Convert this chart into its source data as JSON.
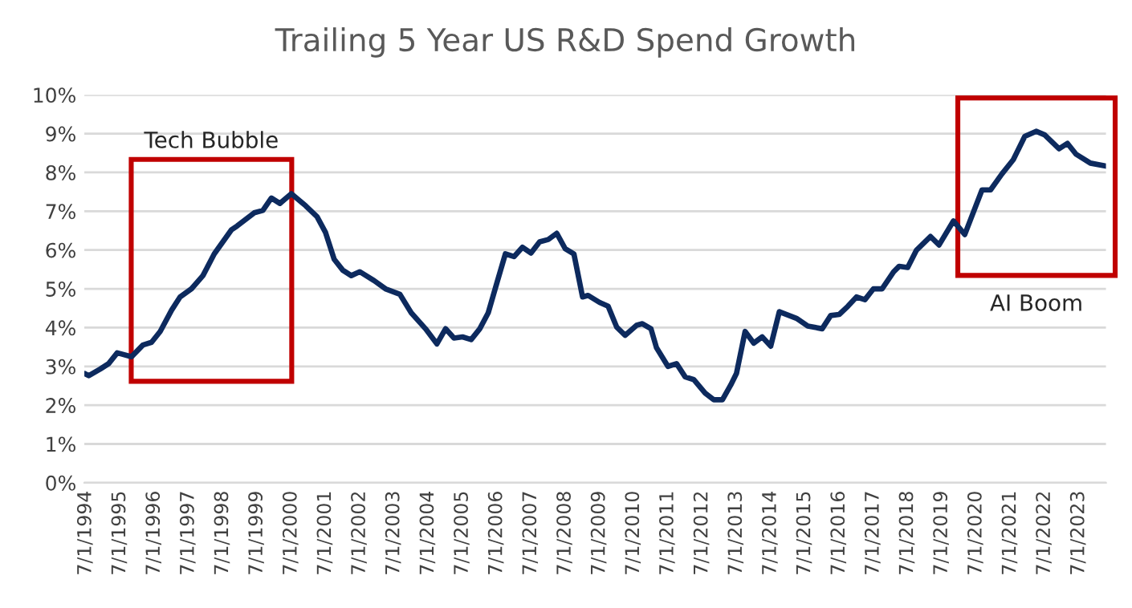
{
  "chart_data": {
    "type": "line",
    "title": "Trailing 5 Year US R&D Spend Growth",
    "x": [
      "1994-07",
      "1994-08",
      "1994-12",
      "1995-03",
      "1995-06",
      "1995-11",
      "1996-03",
      "1996-06",
      "1996-09",
      "1997-01",
      "1997-04",
      "1997-08",
      "1997-12",
      "1998-04",
      "1998-10",
      "1998-12",
      "1999-06",
      "1999-09",
      "1999-12",
      "2000-03",
      "2000-07",
      "2000-12",
      "2001-04",
      "2001-07",
      "2001-10",
      "2002-01",
      "2002-04",
      "2002-07",
      "2002-12",
      "2003-04",
      "2003-09",
      "2004-01",
      "2004-06",
      "2004-10",
      "2005-01",
      "2005-04",
      "2005-07",
      "2005-10",
      "2006-01",
      "2006-04",
      "2006-07",
      "2006-10",
      "2007-01",
      "2007-04",
      "2007-07",
      "2007-10",
      "2008-01",
      "2008-04",
      "2008-07",
      "2008-10",
      "2009-01",
      "2009-03",
      "2009-07",
      "2009-10",
      "2010-01",
      "2010-04",
      "2010-08",
      "2010-10",
      "2011-01",
      "2011-03",
      "2011-07",
      "2011-10",
      "2012-01",
      "2012-04",
      "2012-08",
      "2012-11",
      "2013-02",
      "2013-05",
      "2013-07",
      "2013-10",
      "2014-01",
      "2014-04",
      "2014-07",
      "2014-10",
      "2015-04",
      "2015-08",
      "2016-01",
      "2016-04",
      "2016-07",
      "2016-10",
      "2017-01",
      "2017-04",
      "2017-07",
      "2017-10",
      "2018-02",
      "2018-04",
      "2018-07",
      "2018-10",
      "2019-03",
      "2019-06",
      "2019-11",
      "2020-03",
      "2020-09",
      "2020-12",
      "2021-04",
      "2021-08",
      "2021-12",
      "2022-04",
      "2022-07",
      "2022-12",
      "2023-03",
      "2023-06",
      "2023-11",
      "2024-04"
    ],
    "series": [
      {
        "color": "#0d2a5e",
        "values": [
          2.8,
          2.76,
          2.93,
          3.07,
          3.35,
          3.25,
          3.55,
          3.62,
          3.9,
          4.45,
          4.79,
          5.0,
          5.34,
          5.9,
          6.52,
          6.62,
          6.96,
          7.02,
          7.34,
          7.2,
          7.45,
          7.14,
          6.86,
          6.45,
          5.76,
          5.48,
          5.34,
          5.44,
          5.21,
          5.0,
          4.86,
          4.38,
          3.97,
          3.58,
          3.97,
          3.73,
          3.76,
          3.69,
          3.97,
          4.38,
          5.14,
          5.9,
          5.83,
          6.07,
          5.92,
          6.21,
          6.27,
          6.43,
          6.03,
          5.9,
          4.79,
          4.83,
          4.65,
          4.55,
          4.01,
          3.8,
          4.06,
          4.1,
          3.97,
          3.48,
          3.0,
          3.07,
          2.73,
          2.66,
          2.31,
          2.14,
          2.14,
          2.52,
          2.82,
          3.9,
          3.6,
          3.76,
          3.52,
          4.41,
          4.24,
          4.04,
          3.97,
          4.31,
          4.34,
          4.55,
          4.79,
          4.72,
          5.0,
          5.0,
          5.44,
          5.58,
          5.55,
          5.99,
          6.35,
          6.13,
          6.75,
          6.4,
          7.55,
          7.55,
          7.96,
          8.33,
          8.93,
          9.06,
          8.97,
          8.61,
          8.75,
          8.47,
          8.24,
          8.17
        ]
      }
    ],
    "xlim": [
      "1994-06-15",
      "2024-04-15"
    ],
    "xticks": [
      {
        "value": "1994-07-01",
        "label": "7/1/1994"
      },
      {
        "value": "1995-07-01",
        "label": "7/1/1995"
      },
      {
        "value": "1996-07-01",
        "label": "7/1/1996"
      },
      {
        "value": "1997-07-01",
        "label": "7/1/1997"
      },
      {
        "value": "1998-07-01",
        "label": "7/1/1998"
      },
      {
        "value": "1999-07-01",
        "label": "7/1/1999"
      },
      {
        "value": "2000-07-01",
        "label": "7/1/2000"
      },
      {
        "value": "2001-07-01",
        "label": "7/1/2001"
      },
      {
        "value": "2002-07-01",
        "label": "7/1/2002"
      },
      {
        "value": "2003-07-01",
        "label": "7/1/2003"
      },
      {
        "value": "2004-07-01",
        "label": "7/1/2004"
      },
      {
        "value": "2005-07-01",
        "label": "7/1/2005"
      },
      {
        "value": "2006-07-01",
        "label": "7/1/2006"
      },
      {
        "value": "2007-07-01",
        "label": "7/1/2007"
      },
      {
        "value": "2008-07-01",
        "label": "7/1/2008"
      },
      {
        "value": "2009-07-01",
        "label": "7/1/2009"
      },
      {
        "value": "2010-07-01",
        "label": "7/1/2010"
      },
      {
        "value": "2011-07-01",
        "label": "7/1/2011"
      },
      {
        "value": "2012-07-01",
        "label": "7/1/2012"
      },
      {
        "value": "2013-07-01",
        "label": "7/1/2013"
      },
      {
        "value": "2014-07-01",
        "label": "7/1/2014"
      },
      {
        "value": "2015-07-01",
        "label": "7/1/2015"
      },
      {
        "value": "2016-07-01",
        "label": "7/1/2016"
      },
      {
        "value": "2017-07-01",
        "label": "7/1/2017"
      },
      {
        "value": "2018-07-01",
        "label": "7/1/2018"
      },
      {
        "value": "2019-07-01",
        "label": "7/1/2019"
      },
      {
        "value": "2020-07-01",
        "label": "7/1/2020"
      },
      {
        "value": "2021-07-01",
        "label": "7/1/2021"
      },
      {
        "value": "2022-07-01",
        "label": "7/1/2022"
      },
      {
        "value": "2023-07-01",
        "label": "7/1/2023"
      }
    ],
    "ylim": [
      0,
      10
    ],
    "yticks": [
      {
        "value": 0,
        "label": "0%"
      },
      {
        "value": 1,
        "label": "1%"
      },
      {
        "value": 2,
        "label": "2%"
      },
      {
        "value": 3,
        "label": "3%"
      },
      {
        "value": 4,
        "label": "4%"
      },
      {
        "value": 5,
        "label": "5%"
      },
      {
        "value": 6,
        "label": "6%"
      },
      {
        "value": 7,
        "label": "7%"
      },
      {
        "value": 8,
        "label": "8%"
      },
      {
        "value": 9,
        "label": "9%"
      },
      {
        "value": 10,
        "label": "10%"
      }
    ],
    "grid": "y",
    "marker": "none",
    "line_style": "solid",
    "annotations": [
      "Tech Bubble",
      "AI Boom"
    ]
  }
}
